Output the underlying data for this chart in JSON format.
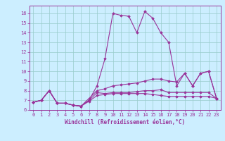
{
  "xlabel": "Windchill (Refroidissement éolien,°C)",
  "bg_color": "#cceeff",
  "line_color": "#993399",
  "grid_color": "#99cccc",
  "xlim": [
    -0.5,
    23.5
  ],
  "ylim": [
    6.0,
    16.8
  ],
  "xticks": [
    0,
    1,
    2,
    3,
    4,
    5,
    6,
    7,
    8,
    9,
    10,
    11,
    12,
    13,
    14,
    15,
    16,
    17,
    18,
    19,
    20,
    21,
    22,
    23
  ],
  "yticks": [
    6,
    7,
    8,
    9,
    10,
    11,
    12,
    13,
    14,
    15,
    16
  ],
  "series": [
    [
      6.8,
      7.0,
      8.0,
      6.7,
      6.7,
      6.5,
      6.4,
      7.0,
      8.5,
      11.3,
      16.0,
      15.8,
      15.7,
      14.0,
      16.2,
      15.5,
      14.0,
      13.0,
      8.5,
      9.8,
      8.5,
      9.8,
      10.0,
      7.2
    ],
    [
      6.8,
      7.0,
      8.0,
      6.7,
      6.7,
      6.5,
      6.4,
      7.0,
      7.8,
      7.7,
      7.8,
      7.8,
      7.8,
      7.9,
      8.0,
      8.0,
      8.1,
      7.8,
      7.8,
      7.8,
      7.8,
      7.8,
      7.8,
      7.2
    ],
    [
      6.8,
      7.0,
      8.0,
      6.7,
      6.7,
      6.5,
      6.4,
      7.2,
      8.0,
      8.2,
      8.5,
      8.6,
      8.7,
      8.8,
      9.0,
      9.2,
      9.2,
      9.0,
      8.9,
      9.8,
      8.5,
      9.8,
      10.0,
      7.2
    ],
    [
      6.8,
      7.0,
      8.0,
      6.7,
      6.7,
      6.5,
      6.4,
      6.9,
      7.5,
      7.6,
      7.7,
      7.7,
      7.7,
      7.7,
      7.7,
      7.6,
      7.5,
      7.4,
      7.4,
      7.4,
      7.4,
      7.4,
      7.4,
      7.2
    ]
  ]
}
